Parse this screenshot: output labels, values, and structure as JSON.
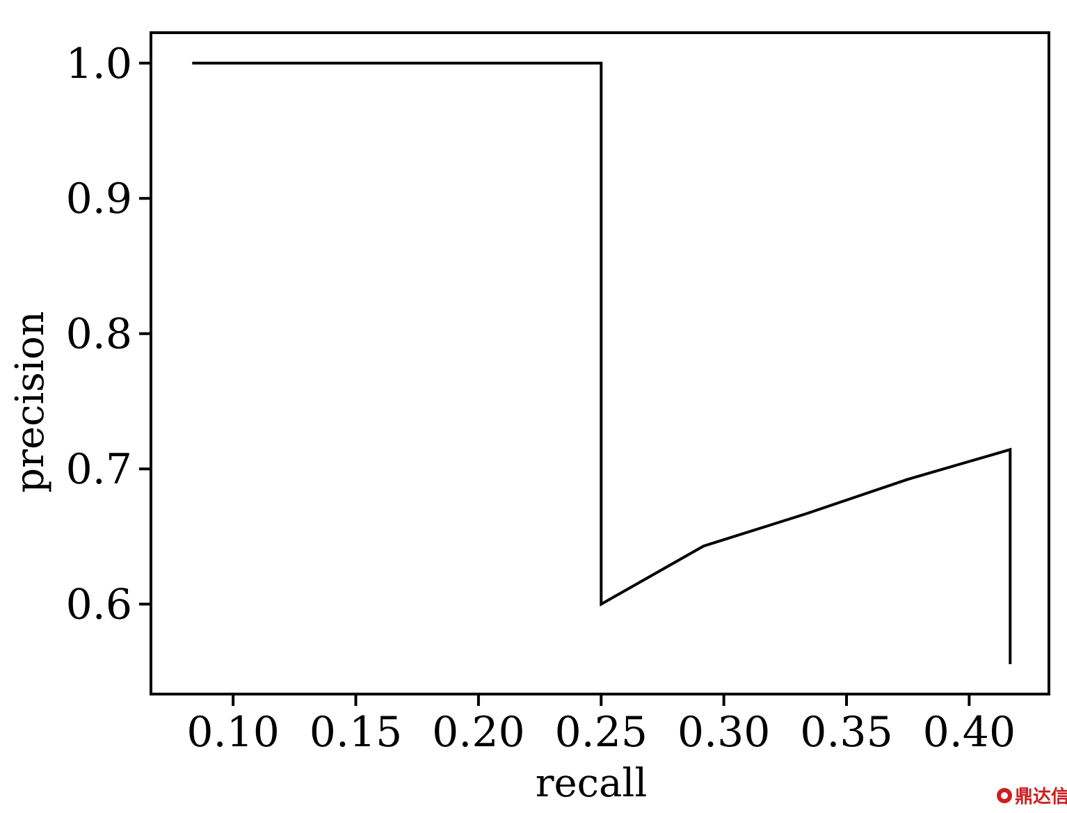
{
  "chart_data": {
    "type": "line",
    "title": "",
    "xlabel": "recall",
    "ylabel": "precision",
    "xlim": [
      0.0665,
      0.4325
    ],
    "ylim": [
      0.5335,
      1.0225
    ],
    "xticks": [
      0.1,
      0.15,
      0.2,
      0.25,
      0.3,
      0.35,
      0.4
    ],
    "xtick_labels": [
      "0.10",
      "0.15",
      "0.20",
      "0.25",
      "0.30",
      "0.35",
      "0.40"
    ],
    "yticks": [
      0.6,
      0.7,
      0.8,
      0.9,
      1.0
    ],
    "ytick_labels": [
      "0.6",
      "0.7",
      "0.8",
      "0.9",
      "1.0"
    ],
    "grid": false,
    "legend": "none",
    "series": [
      {
        "x": [
          0.0833,
          0.25,
          0.25,
          0.2917,
          0.3333,
          0.375,
          0.4167,
          0.4167
        ],
        "y": [
          1.0,
          1.0,
          0.6,
          0.6429,
          0.6667,
          0.6923,
          0.7143,
          0.5556
        ],
        "color": "#000000"
      }
    ]
  },
  "watermark": {
    "text": "鼎达信",
    "color": "#cc1f1f"
  }
}
